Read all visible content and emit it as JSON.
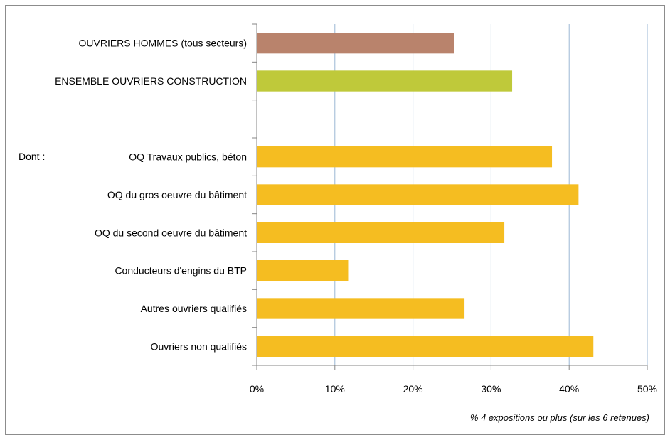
{
  "chart_data": {
    "type": "bar",
    "orientation": "horizontal",
    "title": "",
    "xlabel": "% 4 expositions ou plus  (sur les 6 retenues)",
    "ylabel": "",
    "xlim": [
      0,
      50
    ],
    "xticks": [
      "0%",
      "10%",
      "20%",
      "30%",
      "40%",
      "50%"
    ],
    "grid": true,
    "legend": "none",
    "group_label": "Dont :",
    "categories": [
      "OUVRIERS HOMMES (tous secteurs)",
      "ENSEMBLE OUVRIERS CONSTRUCTION",
      "",
      "OQ Travaux publics, béton",
      "OQ du gros oeuvre du bâtiment",
      "OQ du second oeuvre du bâtiment",
      "Conducteurs d'engins du BTP",
      "Autres ouvriers qualifiés",
      "Ouvriers non qualifiés"
    ],
    "values": [
      25.3,
      32.7,
      null,
      37.8,
      41.2,
      31.7,
      11.7,
      26.6,
      43.1
    ],
    "colors": [
      "#b9836c",
      "#bfc93a",
      null,
      "#f5bd21",
      "#f5bd21",
      "#f5bd21",
      "#f5bd21",
      "#f5bd21",
      "#f5bd21"
    ]
  }
}
